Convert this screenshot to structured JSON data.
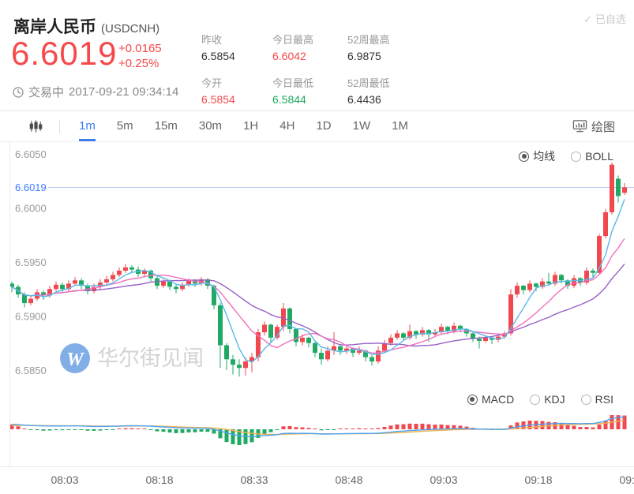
{
  "header": {
    "title": "离岸人民币",
    "symbol": "(USDCNH)",
    "watchlist_label": "已自选",
    "watchlist_check": "✓",
    "price": "6.6019",
    "change": "+0.0165",
    "change_pct": "+0.25%",
    "status": "交易中",
    "datetime": "2017-09-21 09:34:14",
    "stats": [
      {
        "label": "昨收",
        "value": "6.5854",
        "color": "#333333"
      },
      {
        "label": "今日最高",
        "value": "6.6042",
        "color": "#f5494b"
      },
      {
        "label": "52周最高",
        "value": "6.9875",
        "color": "#333333"
      },
      {
        "label": "今开",
        "value": "6.5854",
        "color": "#f5494b"
      },
      {
        "label": "今日最低",
        "value": "6.5844",
        "color": "#1eaa5f"
      },
      {
        "label": "52周最低",
        "value": "6.4436",
        "color": "#333333"
      }
    ]
  },
  "toolbar": {
    "tabs": [
      "1m",
      "5m",
      "15m",
      "30m",
      "1H",
      "4H",
      "1D",
      "1W",
      "1M"
    ],
    "active_tab": "1m",
    "draw_label": "绘图"
  },
  "chart": {
    "overlay_options": [
      "均线",
      "BOLL"
    ],
    "overlay_selected": "均线",
    "indicator_options": [
      "MACD",
      "KDJ",
      "RSI"
    ],
    "indicator_selected": "MACD",
    "y_labels": [
      "6.6050",
      "6.6000",
      "6.5950",
      "6.5900",
      "6.5850"
    ],
    "current_price_label": "6.6019",
    "x_labels": [
      "08:03",
      "08:18",
      "08:33",
      "08:48",
      "09:03",
      "09:18",
      "09:33"
    ],
    "watermark_logo": "W",
    "watermark_text": "华尔街见闻"
  },
  "colors": {
    "red": "#f5494b",
    "green": "#1eaa5f",
    "up_candle": "#f0484e",
    "down_candle": "#1fa963",
    "accent_blue": "#3a7df0",
    "price_line": "#b9c9ef",
    "price_label_blue": "#3d7eff",
    "ma5": "#5ab9e8",
    "ma10": "#f171bd",
    "ma20": "#9761c6",
    "macd_dif": "#4da3f0",
    "macd_dea": "#f3b14f",
    "axis_text": "#999999",
    "watermark_blue": "#82aee8",
    "watermark_gray": "#d3d3d3"
  },
  "chart_data": {
    "type": "candlestick+macd",
    "symbol": "USDCNH",
    "interval": "1m",
    "start_time": "07:56",
    "minutes_per_candle": 1,
    "y_axis_ticks": [
      6.605,
      6.6,
      6.595,
      6.59,
      6.585
    ],
    "x_axis_labels": [
      "08:03",
      "08:18",
      "08:33",
      "08:48",
      "09:03",
      "09:18",
      "09:33"
    ],
    "current_price": 6.6019,
    "day_high": 6.6042,
    "day_low": 6.5844,
    "prev_close": 6.5854,
    "open_today": 6.5854,
    "overlays": [
      "MA5",
      "MA10",
      "MA20"
    ],
    "indicator": "MACD",
    "candles_ohlc": [
      [
        6.593,
        6.5932,
        6.5922,
        6.5927
      ],
      [
        6.5927,
        6.5929,
        6.5917,
        6.592
      ],
      [
        6.592,
        6.5922,
        6.5908,
        6.5912
      ],
      [
        6.5912,
        6.5919,
        6.591,
        6.5916
      ],
      [
        6.5916,
        6.5925,
        6.5914,
        6.5922
      ],
      [
        6.5922,
        6.5924,
        6.5915,
        6.5919
      ],
      [
        6.5919,
        6.5928,
        6.5917,
        6.5925
      ],
      [
        6.5925,
        6.5932,
        6.5923,
        6.5929
      ],
      [
        6.5929,
        6.5931,
        6.5922,
        6.5925
      ],
      [
        6.5925,
        6.5933,
        6.5923,
        6.593
      ],
      [
        6.593,
        6.5936,
        6.5928,
        6.5933
      ],
      [
        6.5933,
        6.5935,
        6.5925,
        6.5928
      ],
      [
        6.5928,
        6.593,
        6.592,
        6.5923
      ],
      [
        6.5923,
        6.593,
        6.5921,
        6.5927
      ],
      [
        6.5927,
        6.5934,
        6.5925,
        6.5931
      ],
      [
        6.5931,
        6.5937,
        6.5929,
        6.5934
      ],
      [
        6.5934,
        6.5941,
        6.5932,
        6.5938
      ],
      [
        6.5938,
        6.5945,
        6.5936,
        6.5942
      ],
      [
        6.5942,
        6.5948,
        6.594,
        6.5945
      ],
      [
        6.5945,
        6.5947,
        6.594,
        6.5943
      ],
      [
        6.5943,
        6.5946,
        6.5936,
        6.5939
      ],
      [
        6.5939,
        6.5944,
        6.5937,
        6.5942
      ],
      [
        6.5942,
        6.5943,
        6.5932,
        6.5935
      ],
      [
        6.5935,
        6.5937,
        6.5925,
        6.5928
      ],
      [
        6.5928,
        6.5934,
        6.5926,
        6.5932
      ],
      [
        6.5932,
        6.5933,
        6.5924,
        6.5927
      ],
      [
        6.5927,
        6.5929,
        6.5921,
        6.5925
      ],
      [
        6.5925,
        6.5931,
        6.5923,
        6.5929
      ],
      [
        6.5929,
        6.5935,
        6.5927,
        6.5933
      ],
      [
        6.5933,
        6.5934,
        6.5927,
        6.593
      ],
      [
        6.593,
        6.5936,
        6.5928,
        6.5934
      ],
      [
        6.5934,
        6.5935,
        6.5925,
        6.5928
      ],
      [
        6.5928,
        6.5929,
        6.5906,
        6.591
      ],
      [
        6.591,
        6.5912,
        6.5852,
        6.5873
      ],
      [
        6.5873,
        6.5875,
        6.585,
        6.586
      ],
      [
        6.586,
        6.5864,
        6.5846,
        6.5855
      ],
      [
        6.5855,
        6.586,
        6.5844,
        6.5852
      ],
      [
        6.5852,
        6.5862,
        6.5845,
        6.5858
      ],
      [
        6.5858,
        6.5866,
        6.5848,
        6.5862
      ],
      [
        6.5862,
        6.5888,
        6.5858,
        6.5885
      ],
      [
        6.5885,
        6.5895,
        6.5882,
        6.5892
      ],
      [
        6.5892,
        6.5893,
        6.5876,
        6.588
      ],
      [
        6.588,
        6.5892,
        6.5878,
        6.589
      ],
      [
        6.589,
        6.5912,
        6.5886,
        6.5907
      ],
      [
        6.5907,
        6.5908,
        6.5884,
        6.5888
      ],
      [
        6.5888,
        6.5889,
        6.5872,
        6.5876
      ],
      [
        6.5876,
        6.5883,
        6.5873,
        6.588
      ],
      [
        6.588,
        6.5881,
        6.5871,
        6.5875
      ],
      [
        6.5875,
        6.5876,
        6.5862,
        6.5866
      ],
      [
        6.5866,
        6.587,
        6.5855,
        6.586
      ],
      [
        6.586,
        6.5872,
        6.5858,
        6.5868
      ],
      [
        6.5868,
        6.5885,
        6.5864,
        6.5872
      ],
      [
        6.5872,
        6.5874,
        6.5864,
        6.5868
      ],
      [
        6.5868,
        6.5873,
        6.5865,
        6.587
      ],
      [
        6.587,
        6.5871,
        6.5862,
        6.5866
      ],
      [
        6.5866,
        6.5872,
        6.5864,
        6.5868
      ],
      [
        6.5868,
        6.5869,
        6.5858,
        6.5862
      ],
      [
        6.5862,
        6.5864,
        6.5854,
        6.5858
      ],
      [
        6.5858,
        6.5872,
        6.5856,
        6.5868
      ],
      [
        6.5868,
        6.5878,
        6.5866,
        6.5875
      ],
      [
        6.5875,
        6.5883,
        6.5873,
        6.588
      ],
      [
        6.588,
        6.5887,
        6.5878,
        6.5884
      ],
      [
        6.5884,
        6.5885,
        6.5877,
        6.588
      ],
      [
        6.588,
        6.5892,
        6.5878,
        6.5886
      ],
      [
        6.5886,
        6.5887,
        6.5879,
        6.5883
      ],
      [
        6.5883,
        6.589,
        6.5881,
        6.5887
      ],
      [
        6.5887,
        6.5888,
        6.5876,
        6.5883
      ],
      [
        6.5883,
        6.5888,
        6.5881,
        6.5885
      ],
      [
        6.5885,
        6.5893,
        6.5883,
        6.589
      ],
      [
        6.589,
        6.5891,
        6.5883,
        6.5886
      ],
      [
        6.5886,
        6.5894,
        6.5884,
        6.5891
      ],
      [
        6.5891,
        6.5892,
        6.5885,
        6.5888
      ],
      [
        6.5888,
        6.5889,
        6.5881,
        6.5884
      ],
      [
        6.5884,
        6.5885,
        6.5876,
        6.5879
      ],
      [
        6.5879,
        6.5881,
        6.587,
        6.5877
      ],
      [
        6.5877,
        6.5882,
        6.5875,
        6.588
      ],
      [
        6.588,
        6.5881,
        6.5874,
        6.5878
      ],
      [
        6.5878,
        6.5883,
        6.5876,
        6.5881
      ],
      [
        6.5881,
        6.5886,
        6.5879,
        6.5884
      ],
      [
        6.5884,
        6.5925,
        6.5882,
        6.592
      ],
      [
        6.592,
        6.5931,
        6.5917,
        6.5928
      ],
      [
        6.5928,
        6.5929,
        6.592,
        6.5924
      ],
      [
        6.5924,
        6.5933,
        6.5922,
        6.593
      ],
      [
        6.593,
        6.5931,
        6.5923,
        6.5927
      ],
      [
        6.5927,
        6.5935,
        6.5925,
        6.5932
      ],
      [
        6.5932,
        6.594,
        6.5928,
        6.593
      ],
      [
        6.593,
        6.5941,
        6.5928,
        6.5938
      ],
      [
        6.5938,
        6.5939,
        6.593,
        6.5933
      ],
      [
        6.5933,
        6.5934,
        6.5925,
        6.5928
      ],
      [
        6.5928,
        6.5938,
        6.5926,
        6.5935
      ],
      [
        6.5935,
        6.5936,
        6.5928,
        6.5931
      ],
      [
        6.5931,
        6.5945,
        6.5929,
        6.5942
      ],
      [
        6.5942,
        6.5944,
        6.5935,
        6.594
      ],
      [
        6.594,
        6.5976,
        6.5938,
        6.5974
      ],
      [
        6.5974,
        6.5999,
        6.5972,
        6.5996
      ],
      [
        6.5996,
        6.6042,
        6.5994,
        6.604
      ],
      [
        6.6027,
        6.603,
        6.6005,
        6.6011
      ],
      [
        6.6014,
        6.6023,
        6.6012,
        6.6019
      ]
    ]
  }
}
